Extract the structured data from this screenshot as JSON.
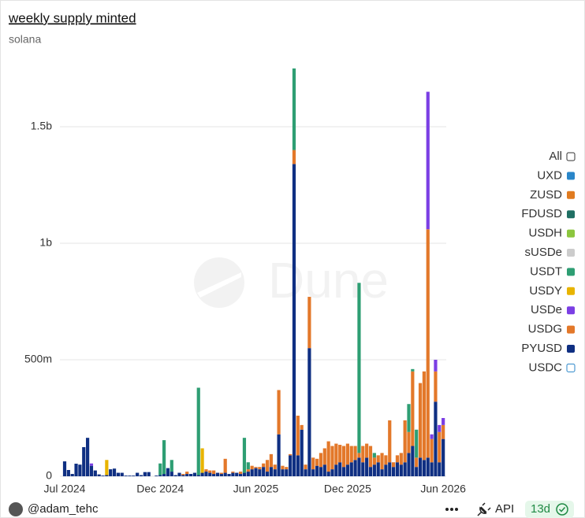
{
  "chart_data": {
    "type": "bar",
    "stacked": true,
    "title": "weekly supply minted",
    "subtitle": "solana",
    "watermark": "Dune",
    "legend_all_label": "All",
    "categories": [
      "Jul 2024",
      null,
      null,
      null,
      null,
      null,
      null,
      null,
      null,
      null,
      null,
      null,
      null,
      null,
      null,
      null,
      null,
      null,
      null,
      null,
      null,
      null,
      null,
      null,
      null,
      "Dec 2024",
      null,
      null,
      null,
      null,
      null,
      null,
      null,
      null,
      null,
      null,
      null,
      null,
      null,
      null,
      null,
      null,
      null,
      null,
      null,
      null,
      null,
      null,
      null,
      null,
      "Jun 2025",
      null,
      null,
      null,
      null,
      null,
      null,
      null,
      null,
      null,
      null,
      null,
      null,
      null,
      null,
      null,
      null,
      null,
      null,
      null,
      null,
      null,
      null,
      null,
      "Dec 2025",
      null,
      null,
      null,
      null,
      null,
      null,
      null,
      null,
      null,
      null,
      null,
      null,
      null,
      null,
      null,
      null,
      null,
      null,
      null,
      null,
      null,
      null,
      null,
      null,
      "Jun 2026"
    ],
    "ylim": [
      0,
      1760
    ],
    "yticks": [
      0,
      {
        "value": 500,
        "label": "500m"
      },
      {
        "value": 1000,
        "label": "1b"
      },
      {
        "value": 1500,
        "label": "1.5b"
      }
    ],
    "grid": true,
    "series": [
      {
        "name": "UXD",
        "color": "#2a86c9"
      },
      {
        "name": "ZUSD",
        "color": "#e07b20"
      },
      {
        "name": "FDUSD",
        "color": "#1f6f63"
      },
      {
        "name": "USDH",
        "color": "#8cc63e"
      },
      {
        "name": "sUSDe",
        "color": "#cccccc"
      },
      {
        "name": "USDT",
        "color": "#2e9e73",
        "values": [
          0,
          0,
          0,
          0,
          0,
          0,
          0,
          0,
          0,
          0,
          0,
          0,
          0,
          0,
          0,
          0,
          0,
          0,
          0,
          0,
          0,
          0,
          0,
          0,
          0,
          50,
          145,
          0,
          50,
          0,
          0,
          0,
          0,
          0,
          0,
          375,
          0,
          0,
          0,
          0,
          0,
          0,
          0,
          0,
          0,
          0,
          0,
          150,
          30,
          0,
          0,
          0,
          0,
          0,
          0,
          0,
          0,
          0,
          0,
          0,
          350,
          0,
          0,
          0,
          0,
          0,
          0,
          0,
          0,
          0,
          0,
          0,
          0,
          0,
          0,
          0,
          0,
          730,
          0,
          0,
          0,
          20,
          0,
          0,
          0,
          0,
          0,
          0,
          0,
          0,
          120,
          10,
          120,
          0,
          0,
          0,
          0,
          0,
          0,
          0
        ]
      },
      {
        "name": "USDY",
        "color": "#e8b400",
        "values": [
          0,
          0,
          0,
          0,
          0,
          0,
          0,
          0,
          0,
          0,
          0,
          65,
          0,
          0,
          0,
          0,
          0,
          0,
          0,
          0,
          0,
          0,
          0,
          0,
          0,
          0,
          0,
          0,
          0,
          0,
          0,
          0,
          0,
          0,
          0,
          0,
          105,
          0,
          0,
          0,
          0,
          0,
          0,
          0,
          0,
          0,
          0,
          0,
          0,
          0,
          0,
          0,
          0,
          0,
          0,
          0,
          0,
          0,
          0,
          0,
          0,
          0,
          0,
          0,
          0,
          0,
          0,
          0,
          0,
          0,
          0,
          0,
          0,
          0,
          0,
          0,
          0,
          0,
          0,
          0,
          0,
          0,
          0,
          0,
          0,
          0,
          0,
          0,
          0,
          0,
          0,
          0,
          0,
          0,
          0,
          0,
          0,
          0,
          0,
          0
        ]
      },
      {
        "name": "USDe",
        "color": "#7b3fe4",
        "values": [
          0,
          0,
          0,
          0,
          0,
          0,
          0,
          10,
          0,
          0,
          0,
          0,
          0,
          0,
          0,
          0,
          0,
          0,
          0,
          0,
          0,
          0,
          0,
          0,
          0,
          0,
          0,
          0,
          0,
          0,
          0,
          0,
          0,
          0,
          0,
          0,
          0,
          0,
          0,
          0,
          0,
          0,
          0,
          0,
          0,
          0,
          0,
          0,
          0,
          0,
          0,
          0,
          0,
          0,
          0,
          0,
          0,
          0,
          0,
          0,
          0,
          0,
          0,
          0,
          0,
          0,
          0,
          0,
          0,
          0,
          0,
          0,
          0,
          0,
          0,
          0,
          0,
          0,
          0,
          0,
          0,
          0,
          0,
          0,
          0,
          0,
          0,
          0,
          0,
          0,
          0,
          0,
          0,
          0,
          0,
          590,
          20,
          50,
          30,
          30
        ]
      },
      {
        "name": "USDG",
        "color": "#e3782a",
        "values": [
          0,
          0,
          0,
          0,
          0,
          0,
          0,
          0,
          0,
          0,
          0,
          0,
          0,
          0,
          0,
          0,
          0,
          0,
          0,
          0,
          0,
          0,
          0,
          0,
          0,
          0,
          0,
          0,
          0,
          0,
          0,
          5,
          10,
          0,
          0,
          0,
          0,
          10,
          10,
          15,
          0,
          5,
          60,
          0,
          5,
          0,
          10,
          0,
          10,
          15,
          5,
          10,
          15,
          50,
          55,
          20,
          190,
          15,
          10,
          5,
          60,
          170,
          20,
          20,
          220,
          50,
          30,
          60,
          70,
          130,
          100,
          90,
          75,
          90,
          90,
          70,
          60,
          20,
          70,
          60,
          90,
          30,
          30,
          70,
          40,
          180,
          20,
          30,
          50,
          180,
          90,
          320,
          40,
          320,
          380,
          980,
          100,
          130,
          130,
          60
        ]
      },
      {
        "name": "PYUSD",
        "color": "#0f2f82",
        "values": [
          64,
          27,
          10,
          54,
          50,
          125,
          165,
          45,
          25,
          8,
          3,
          5,
          30,
          33,
          15,
          15,
          3,
          3,
          3,
          15,
          5,
          18,
          18,
          0,
          3,
          5,
          10,
          35,
          20,
          5,
          15,
          5,
          10,
          10,
          15,
          5,
          15,
          20,
          15,
          10,
          15,
          10,
          15,
          10,
          15,
          15,
          10,
          15,
          20,
          30,
          35,
          30,
          40,
          20,
          40,
          30,
          180,
          30,
          30,
          90,
          1340,
          90,
          200,
          30,
          550,
          30,
          45,
          40,
          50,
          20,
          30,
          50,
          60,
          40,
          50,
          60,
          70,
          80,
          60,
          80,
          40,
          50,
          60,
          30,
          50,
          60,
          40,
          60,
          50,
          60,
          100,
          130,
          40,
          80,
          70,
          80,
          60,
          320,
          60,
          160
        ]
      },
      {
        "name": "USDC",
        "color": "#2a86c9",
        "hidden": true
      }
    ]
  },
  "footer": {
    "author": "@adam_tehc",
    "api": "API",
    "age": "13d"
  }
}
